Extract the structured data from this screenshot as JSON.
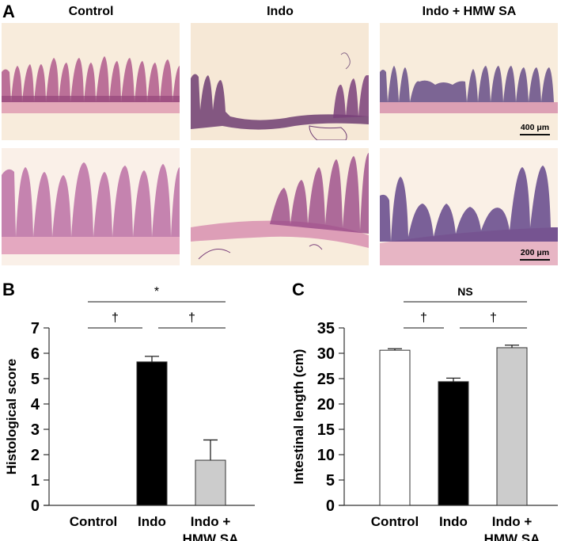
{
  "figure": {
    "panel_a": {
      "letter": "A",
      "columns": [
        "Control",
        "Indo",
        "Indo + HMW SA"
      ],
      "scalebars": {
        "top": "400 μm",
        "bottom": "200 μm"
      },
      "colors": {
        "background": "#f7ead9",
        "stain_pink": "#c9789f",
        "stain_purple": "#5a3a78"
      }
    },
    "panel_b": {
      "letter": "B"
    },
    "panel_c": {
      "letter": "C"
    }
  },
  "chart_data": [
    {
      "type": "bar",
      "panel": "B",
      "title": "",
      "xlabel": "",
      "ylabel": "Histological score",
      "categories": [
        "Control",
        "Indo",
        "Indo + HMW SA"
      ],
      "category_lines": [
        [
          "Control"
        ],
        [
          "Indo"
        ],
        [
          "Indo +",
          "HMW SA"
        ]
      ],
      "values": [
        0,
        5.66,
        1.78
      ],
      "errors": [
        0,
        0.22,
        0.8
      ],
      "bar_colors": [
        "#ffffff",
        "#000000",
        "#cccccc"
      ],
      "ylim": [
        0,
        7
      ],
      "yticks": [
        0,
        1,
        2,
        3,
        4,
        5,
        6,
        7
      ],
      "grid": false,
      "annotations": [
        {
          "from": 0,
          "to": 2,
          "label": "*",
          "level": 2
        },
        {
          "from": 0,
          "to": 1,
          "label": "†",
          "level": 1
        },
        {
          "from": 1,
          "to": 2,
          "label": "†",
          "level": 1
        }
      ]
    },
    {
      "type": "bar",
      "panel": "C",
      "title": "",
      "xlabel": "",
      "ylabel": "Intestinal length (cm)",
      "categories": [
        "Control",
        "Indo",
        "Indo + HMW SA"
      ],
      "category_lines": [
        [
          "Control"
        ],
        [
          "Indo"
        ],
        [
          "Indo +",
          "HMW SA"
        ]
      ],
      "values": [
        30.6,
        24.4,
        31.1
      ],
      "errors": [
        0.3,
        0.7,
        0.5
      ],
      "bar_colors": [
        "#ffffff",
        "#000000",
        "#cccccc"
      ],
      "ylim": [
        0,
        35
      ],
      "yticks": [
        0,
        5,
        10,
        15,
        20,
        25,
        30,
        35
      ],
      "grid": false,
      "annotations": [
        {
          "from": 0,
          "to": 2,
          "label": "NS",
          "level": 2
        },
        {
          "from": 0,
          "to": 1,
          "label": "†",
          "level": 1
        },
        {
          "from": 1,
          "to": 2,
          "label": "†",
          "level": 1
        }
      ]
    }
  ]
}
